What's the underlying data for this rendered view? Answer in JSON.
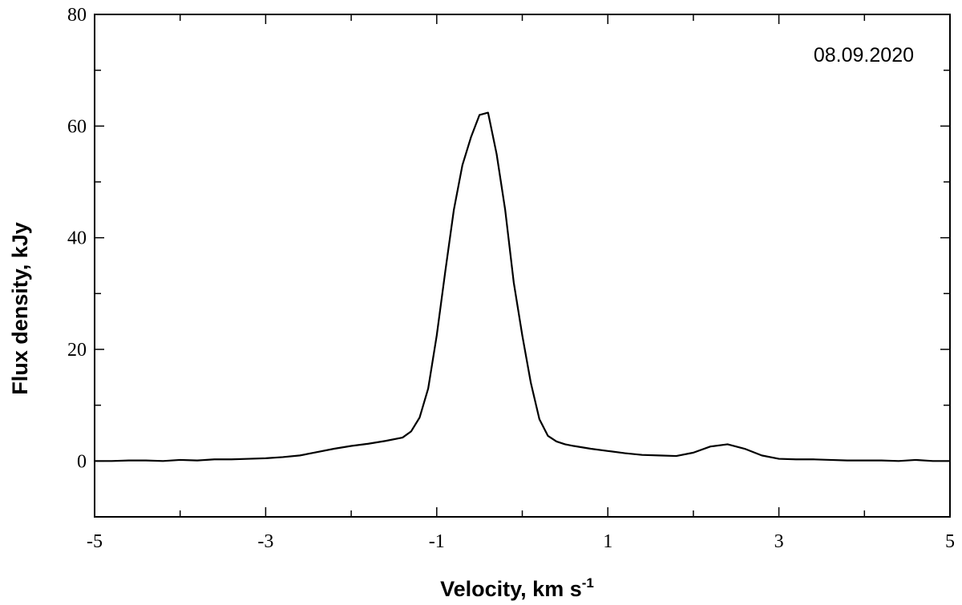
{
  "chart_data": {
    "type": "line",
    "xlabel": "Velocity, km s",
    "xlabel_sup": "-1",
    "ylabel": "Flux density, kJy",
    "annotation": "08.09.2020",
    "xlim": [
      -5,
      5
    ],
    "ylim": [
      -10,
      80
    ],
    "x_ticks": [
      -5,
      -4,
      -3,
      -2,
      -1,
      0,
      1,
      2,
      3,
      4,
      5
    ],
    "x_tick_labels": [
      "-5",
      "-3",
      "-1",
      "1",
      "3",
      "5"
    ],
    "x_tick_label_values": [
      -5,
      -3,
      -1,
      1,
      3,
      5
    ],
    "y_ticks": [
      -10,
      0,
      10,
      20,
      30,
      40,
      50,
      60,
      70,
      80
    ],
    "y_tick_labels": [
      "0",
      "20",
      "40",
      "60",
      "80"
    ],
    "y_tick_label_values": [
      0,
      20,
      40,
      60,
      80
    ],
    "grid": false,
    "series": [
      {
        "color": "#000000",
        "x": [
          -5.0,
          -4.8,
          -4.6,
          -4.4,
          -4.2,
          -4.0,
          -3.8,
          -3.6,
          -3.4,
          -3.2,
          -3.0,
          -2.8,
          -2.6,
          -2.4,
          -2.2,
          -2.0,
          -1.8,
          -1.6,
          -1.4,
          -1.3,
          -1.2,
          -1.1,
          -1.0,
          -0.9,
          -0.8,
          -0.7,
          -0.6,
          -0.5,
          -0.4,
          -0.3,
          -0.2,
          -0.1,
          0.0,
          0.1,
          0.2,
          0.3,
          0.4,
          0.5,
          0.6,
          0.8,
          1.0,
          1.2,
          1.4,
          1.6,
          1.8,
          2.0,
          2.2,
          2.4,
          2.6,
          2.8,
          3.0,
          3.2,
          3.4,
          3.6,
          3.8,
          4.0,
          4.2,
          4.4,
          4.6,
          4.8,
          5.0
        ],
        "y": [
          0.0,
          0.0,
          0.1,
          0.1,
          0.0,
          0.2,
          0.1,
          0.3,
          0.3,
          0.4,
          0.5,
          0.7,
          1.0,
          1.6,
          2.2,
          2.7,
          3.1,
          3.6,
          4.2,
          5.3,
          7.8,
          13.0,
          22.5,
          34.0,
          45.0,
          53.0,
          58.0,
          62.0,
          62.4,
          55.0,
          45.0,
          32.0,
          22.5,
          14.0,
          7.5,
          4.5,
          3.5,
          3.0,
          2.7,
          2.2,
          1.8,
          1.4,
          1.1,
          1.0,
          0.9,
          1.5,
          2.6,
          3.0,
          2.2,
          1.0,
          0.4,
          0.3,
          0.3,
          0.2,
          0.1,
          0.1,
          0.1,
          0.0,
          0.2,
          0.0,
          0.0
        ]
      }
    ]
  }
}
